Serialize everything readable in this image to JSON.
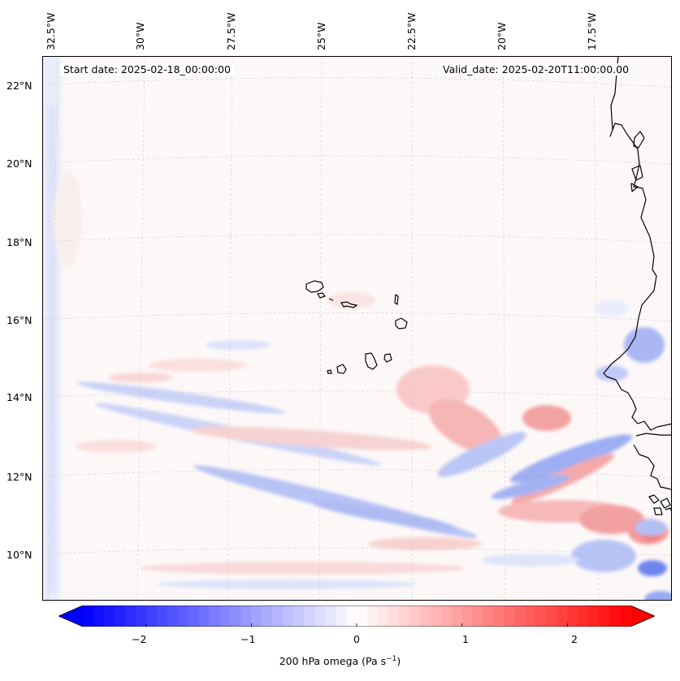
{
  "header": {
    "start_date": "Start date: 2025-02-18_00:00:00",
    "valid_date": "Valid_date: 2025-02-20T11:00:00.00"
  },
  "longitude_labels": [
    "32.5°W",
    "30°W",
    "27.5°W",
    "25°W",
    "22.5°W",
    "20°W",
    "17.5°W"
  ],
  "latitude_labels": [
    "22°N",
    "20°N",
    "18°N",
    "16°N",
    "14°N",
    "12°N",
    "10°N"
  ],
  "colorbar": {
    "ticks": [
      "−2",
      "−1",
      "0",
      "1",
      "2"
    ],
    "tick_values": [
      -2,
      -1,
      0,
      1,
      2
    ],
    "range": [
      -2.6,
      2.6
    ],
    "label_prefix": "200 hPa omega (Pa s",
    "label_exponent": "−1",
    "label_suffix": ")",
    "colors": {
      "negative": "#0000ff",
      "zero": "#ffffff",
      "positive": "#ff0000"
    }
  },
  "map": {
    "field": "200 hPa omega",
    "extent": {
      "lon_min": -32.8,
      "lon_max": -16.0,
      "lat_min": 8.8,
      "lat_max": 22.8
    },
    "coastline_color": "#000000",
    "gridline_color": "#c8c8c8"
  }
}
